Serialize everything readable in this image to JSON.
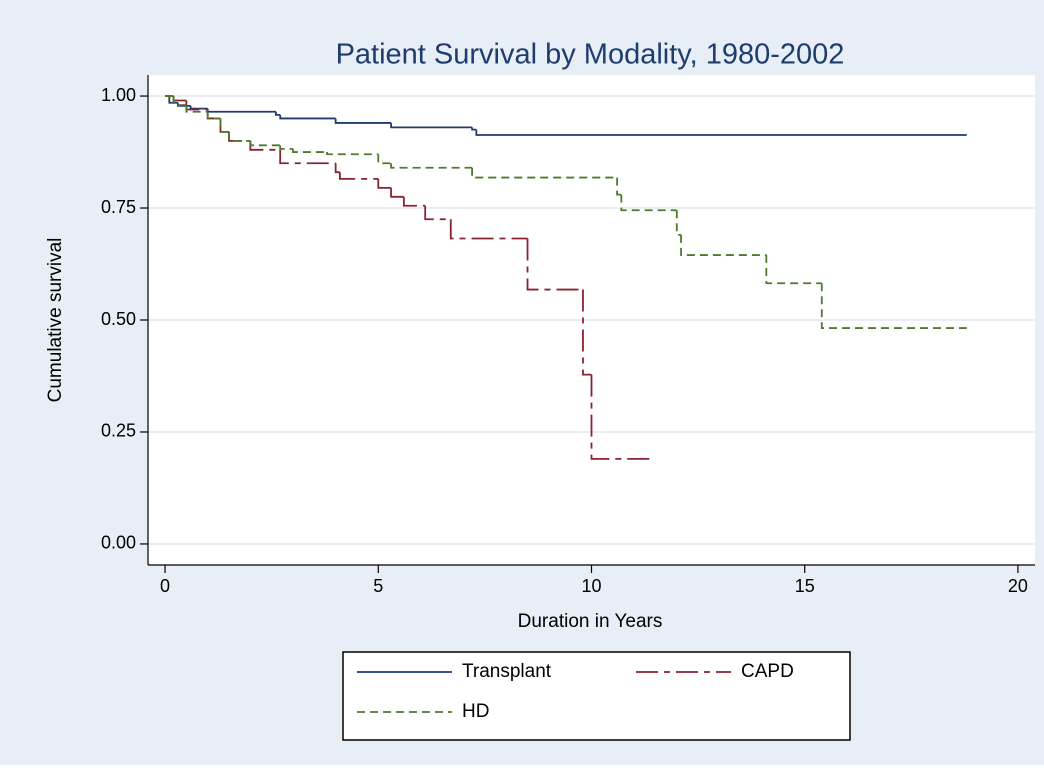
{
  "chart_data": {
    "type": "step",
    "title": "Patient Survival by Modality, 1980-2002",
    "x_label": "Duration in Years",
    "y_label": "Cumulative survival",
    "xlim": [
      -0.4,
      20.4
    ],
    "ylim": [
      -0.047,
      1.047
    ],
    "xticks": [
      0,
      5,
      10,
      15,
      20
    ],
    "yticks": [
      {
        "value": 0,
        "label": "0.00"
      },
      {
        "value": 0.25,
        "label": "0.25"
      },
      {
        "value": 0.5,
        "label": "0.50"
      },
      {
        "value": 0.75,
        "label": "0.75"
      },
      {
        "value": 1,
        "label": "1.00"
      }
    ],
    "grid": true,
    "legend": "bottom",
    "series": [
      {
        "name": "Transplant",
        "color": "#1f3c6e",
        "dash": "solid",
        "x": [
          0,
          0.1,
          0.3,
          0.6,
          1.0,
          2.6,
          2.7,
          4.0,
          5.3,
          7.2,
          7.3,
          18.8
        ],
        "values": [
          1.0,
          0.985,
          0.978,
          0.972,
          0.965,
          0.958,
          0.95,
          0.94,
          0.93,
          0.925,
          0.913,
          0.913
        ]
      },
      {
        "name": "CAPD",
        "color": "#8b2232",
        "dash": "longdashdot",
        "x": [
          0,
          0.2,
          0.5,
          1.0,
          1.3,
          1.5,
          2.0,
          2.7,
          4.0,
          4.1,
          5.0,
          5.3,
          5.6,
          6.1,
          6.7,
          8.5,
          9.8,
          10.0,
          11.4
        ],
        "values": [
          1.0,
          0.99,
          0.97,
          0.95,
          0.92,
          0.9,
          0.88,
          0.85,
          0.83,
          0.815,
          0.795,
          0.775,
          0.755,
          0.725,
          0.682,
          0.568,
          0.378,
          0.19,
          0.19
        ]
      },
      {
        "name": "HD",
        "color": "#4e7a2a",
        "dash": "dash",
        "x": [
          0,
          0.2,
          0.5,
          1.0,
          1.3,
          1.5,
          2.0,
          2.7,
          3.0,
          3.8,
          5.0,
          5.3,
          7.2,
          10.6,
          10.7,
          12.0,
          12.1,
          14.1,
          15.4,
          18.8
        ],
        "values": [
          1.0,
          0.98,
          0.965,
          0.95,
          0.92,
          0.9,
          0.89,
          0.882,
          0.875,
          0.87,
          0.85,
          0.84,
          0.818,
          0.78,
          0.745,
          0.69,
          0.645,
          0.582,
          0.482,
          0.482
        ]
      }
    ]
  }
}
